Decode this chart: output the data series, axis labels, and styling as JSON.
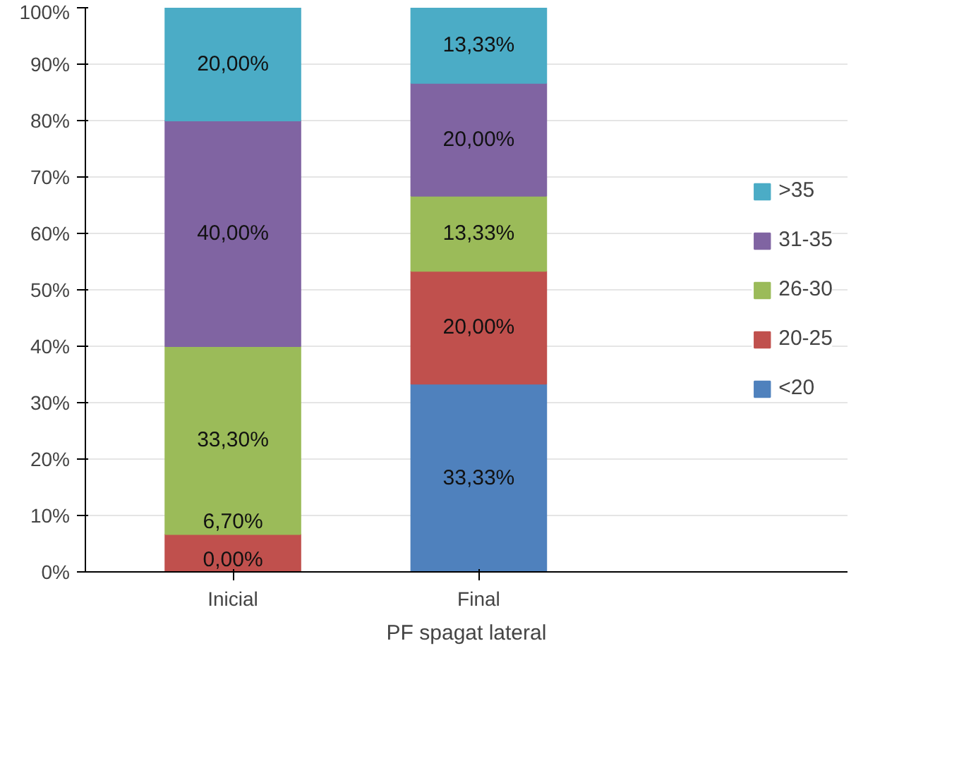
{
  "chart_data": {
    "type": "bar",
    "stacked": true,
    "xlabel": "PF spagat lateral",
    "categories": [
      "Inicial",
      "Final"
    ],
    "ylim": [
      0,
      100
    ],
    "yticks": [
      {
        "value": 0,
        "label": "0%"
      },
      {
        "value": 10,
        "label": "10%"
      },
      {
        "value": 20,
        "label": "20%"
      },
      {
        "value": 30,
        "label": "30%"
      },
      {
        "value": 40,
        "label": "40%"
      },
      {
        "value": 50,
        "label": "50%"
      },
      {
        "value": 60,
        "label": "60%"
      },
      {
        "value": 70,
        "label": "70%"
      },
      {
        "value": 80,
        "label": "80%"
      },
      {
        "value": 90,
        "label": "90%"
      },
      {
        "value": 100,
        "label": "100%"
      }
    ],
    "grid": "y",
    "legend": "right",
    "series": [
      {
        "name": "<20",
        "color": "#4f81bd",
        "values": [
          0,
          33.33
        ],
        "value_labels": [
          "0,00%",
          "33,33%"
        ]
      },
      {
        "name": "20-25",
        "color": "#c0504d",
        "values": [
          6.7,
          20
        ],
        "value_labels": [
          "6,70%",
          "20,00%"
        ]
      },
      {
        "name": "26-30",
        "color": "#9bbb59",
        "values": [
          33.3,
          13.33
        ],
        "value_labels": [
          "33,30%",
          "13,33%"
        ]
      },
      {
        "name": "31-35",
        "color": "#8064a2",
        "values": [
          40,
          20
        ],
        "value_labels": [
          "40,00%",
          "20,00%"
        ]
      },
      {
        "name": ">35",
        "color": "#4bacc6",
        "values": [
          20,
          13.33
        ],
        "value_labels": [
          "20,00%",
          "13,33%"
        ]
      }
    ]
  }
}
